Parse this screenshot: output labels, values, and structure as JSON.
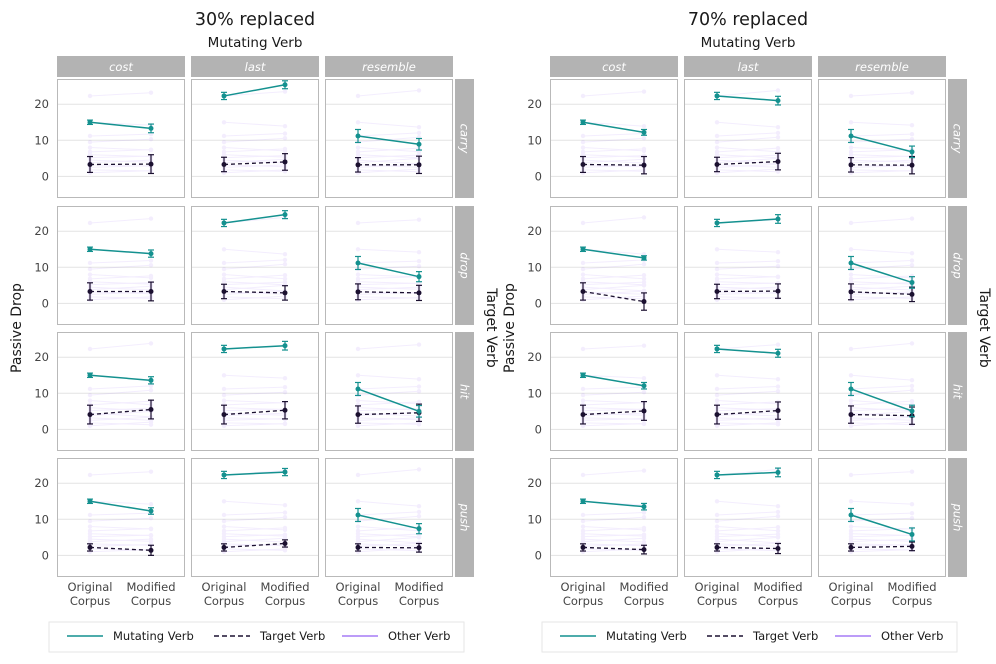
{
  "chart_data": {
    "type": "line",
    "colors": {
      "mutating": "#14918f",
      "target": "#1b1030",
      "other": "#a57cf6",
      "strip_bg": "#b3b3b3",
      "grid": "#e3e3e3",
      "panel_border": "#b9b9b9"
    },
    "x_categories": [
      "Original Corpus",
      "Modified Corpus"
    ],
    "x_tick_labels": [
      [
        "Original",
        "Corpus"
      ],
      [
        "Modified",
        "Corpus"
      ]
    ],
    "ylim": [
      -6,
      27
    ],
    "y_ticks": [
      0,
      10,
      20
    ],
    "ylabel": "Passive Drop",
    "row_facet_label": "Target Verb",
    "col_facets": [
      "cost",
      "last",
      "resemble"
    ],
    "row_facets": [
      "carry",
      "drop",
      "hit",
      "push"
    ],
    "legend": [
      "Mutating Verb",
      "Target Verb",
      "Other Verb"
    ],
    "figures": [
      {
        "title": "30% replaced",
        "subtitle": "Mutating Verb",
        "panels": [
          [
            {
              "mutating": [
                15.0,
                13.3
              ],
              "mutating_err": [
                0.6,
                1.2
              ],
              "target": [
                3.3,
                3.4
              ],
              "target_err": [
                2.2,
                2.6
              ]
            },
            {
              "mutating": [
                22.3,
                25.4
              ],
              "mutating_err": [
                1.0,
                1.1
              ],
              "target": [
                3.3,
                4.0
              ],
              "target_err": [
                2.0,
                2.3
              ]
            },
            {
              "mutating": [
                11.2,
                8.9
              ],
              "mutating_err": [
                1.8,
                1.6
              ],
              "target": [
                3.2,
                3.2
              ],
              "target_err": [
                2.0,
                2.4
              ]
            }
          ],
          [
            {
              "mutating": [
                15.0,
                13.8
              ],
              "mutating_err": [
                0.6,
                1.0
              ],
              "target": [
                3.3,
                3.3
              ],
              "target_err": [
                2.4,
                2.6
              ]
            },
            {
              "mutating": [
                22.3,
                24.6
              ],
              "mutating_err": [
                1.0,
                1.1
              ],
              "target": [
                3.3,
                2.9
              ],
              "target_err": [
                2.0,
                2.0
              ]
            },
            {
              "mutating": [
                11.2,
                7.4
              ],
              "mutating_err": [
                1.8,
                1.4
              ],
              "target": [
                3.2,
                2.9
              ],
              "target_err": [
                2.2,
                2.1
              ]
            }
          ],
          [
            {
              "mutating": [
                15.0,
                13.6
              ],
              "mutating_err": [
                0.6,
                1.0
              ],
              "target": [
                4.1,
                5.5
              ],
              "target_err": [
                2.6,
                2.6
              ]
            },
            {
              "mutating": [
                22.3,
                23.2
              ],
              "mutating_err": [
                1.0,
                1.2
              ],
              "target": [
                4.1,
                5.3
              ],
              "target_err": [
                2.6,
                2.4
              ]
            },
            {
              "mutating": [
                11.2,
                5.0
              ],
              "mutating_err": [
                1.8,
                1.6
              ],
              "target": [
                4.1,
                4.6
              ],
              "target_err": [
                2.4,
                2.4
              ]
            }
          ],
          [
            {
              "mutating": [
                15.0,
                12.3
              ],
              "mutating_err": [
                0.6,
                0.9
              ],
              "target": [
                2.2,
                1.4
              ],
              "target_err": [
                1.0,
                1.4
              ]
            },
            {
              "mutating": [
                22.3,
                23.1
              ],
              "mutating_err": [
                1.0,
                1.0
              ],
              "target": [
                2.2,
                3.3
              ],
              "target_err": [
                1.0,
                1.0
              ]
            },
            {
              "mutating": [
                11.2,
                7.4
              ],
              "mutating_err": [
                1.8,
                1.4
              ],
              "target": [
                2.2,
                2.1
              ],
              "target_err": [
                1.0,
                1.2
              ]
            }
          ]
        ]
      },
      {
        "title": "70% replaced",
        "subtitle": "Mutating Verb",
        "panels": [
          [
            {
              "mutating": [
                15.0,
                12.2
              ],
              "mutating_err": [
                0.6,
                0.8
              ],
              "target": [
                3.3,
                3.1
              ],
              "target_err": [
                2.2,
                2.4
              ]
            },
            {
              "mutating": [
                22.3,
                21.0
              ],
              "mutating_err": [
                1.0,
                1.2
              ],
              "target": [
                3.3,
                4.1
              ],
              "target_err": [
                2.0,
                2.3
              ]
            },
            {
              "mutating": [
                11.2,
                6.8
              ],
              "mutating_err": [
                1.8,
                1.6
              ],
              "target": [
                3.2,
                3.1
              ],
              "target_err": [
                2.0,
                2.4
              ]
            }
          ],
          [
            {
              "mutating": [
                15.0,
                12.6
              ],
              "mutating_err": [
                0.6,
                0.6
              ],
              "target": [
                3.3,
                0.5
              ],
              "target_err": [
                2.4,
                2.4
              ]
            },
            {
              "mutating": [
                22.3,
                23.4
              ],
              "mutating_err": [
                1.0,
                1.2
              ],
              "target": [
                3.3,
                3.4
              ],
              "target_err": [
                2.0,
                2.0
              ]
            },
            {
              "mutating": [
                11.2,
                5.8
              ],
              "mutating_err": [
                1.8,
                1.6
              ],
              "target": [
                3.2,
                2.5
              ],
              "target_err": [
                2.2,
                2.0
              ]
            }
          ],
          [
            {
              "mutating": [
                15.0,
                12.1
              ],
              "mutating_err": [
                0.6,
                0.9
              ],
              "target": [
                4.1,
                5.1
              ],
              "target_err": [
                2.6,
                2.6
              ]
            },
            {
              "mutating": [
                22.3,
                21.1
              ],
              "mutating_err": [
                1.0,
                1.1
              ],
              "target": [
                4.1,
                5.2
              ],
              "target_err": [
                2.6,
                2.4
              ]
            },
            {
              "mutating": [
                11.2,
                5.1
              ],
              "mutating_err": [
                1.8,
                1.6
              ],
              "target": [
                4.1,
                3.8
              ],
              "target_err": [
                2.4,
                2.4
              ]
            }
          ],
          [
            {
              "mutating": [
                15.0,
                13.5
              ],
              "mutating_err": [
                0.6,
                0.9
              ],
              "target": [
                2.2,
                1.6
              ],
              "target_err": [
                1.0,
                1.2
              ]
            },
            {
              "mutating": [
                22.3,
                23.0
              ],
              "mutating_err": [
                1.0,
                1.2
              ],
              "target": [
                2.2,
                1.9
              ],
              "target_err": [
                1.0,
                1.4
              ]
            },
            {
              "mutating": [
                11.2,
                5.8
              ],
              "mutating_err": [
                1.8,
                1.8
              ],
              "target": [
                2.2,
                2.5
              ],
              "target_err": [
                1.0,
                1.2
              ]
            }
          ]
        ]
      }
    ],
    "other_verbs_start": [
      22.3,
      15.0,
      11.2,
      9.5,
      8.0,
      6.8,
      6.0,
      5.2,
      4.5,
      3.8,
      3.2,
      2.5,
      1.8,
      1.0
    ],
    "other_verbs_shift": [
      0.9,
      -0.8,
      0.5,
      0.8,
      -0.7,
      0.6,
      -0.5,
      0.4,
      -0.6,
      0.7,
      -0.4,
      0.5,
      -0.3,
      0.6
    ]
  }
}
